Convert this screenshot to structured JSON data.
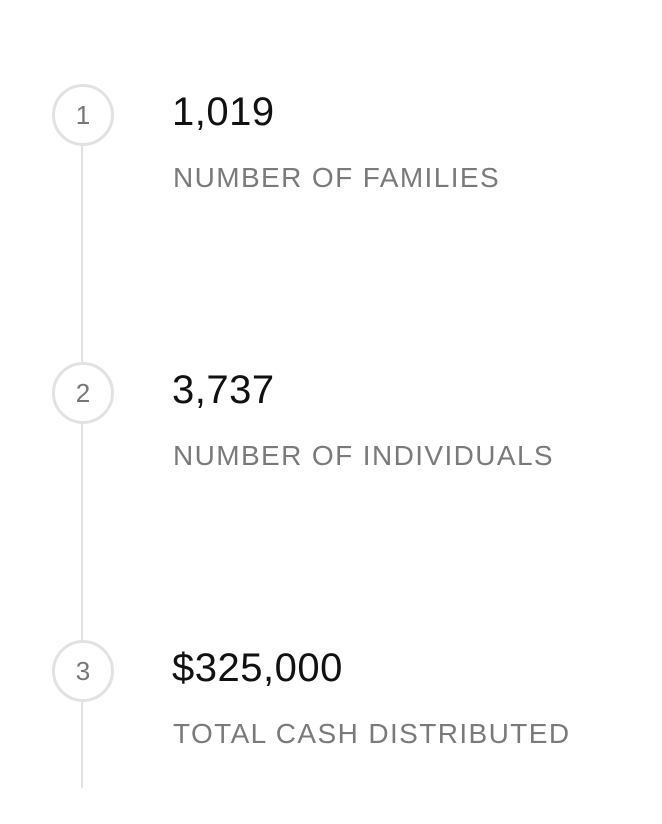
{
  "steps": [
    {
      "number": "1",
      "value": "1,019",
      "label": "NUMBER OF FAMILIES"
    },
    {
      "number": "2",
      "value": "3,737",
      "label": "NUMBER OF INDIVIDUALS"
    },
    {
      "number": "3",
      "value": "$325,000",
      "label": "TOTAL CASH DISTRIBUTED"
    }
  ],
  "colors": {
    "line": "#e2e2e2",
    "number_text": "#777777",
    "value_text": "#111111",
    "label_text": "#7a7a7a"
  }
}
